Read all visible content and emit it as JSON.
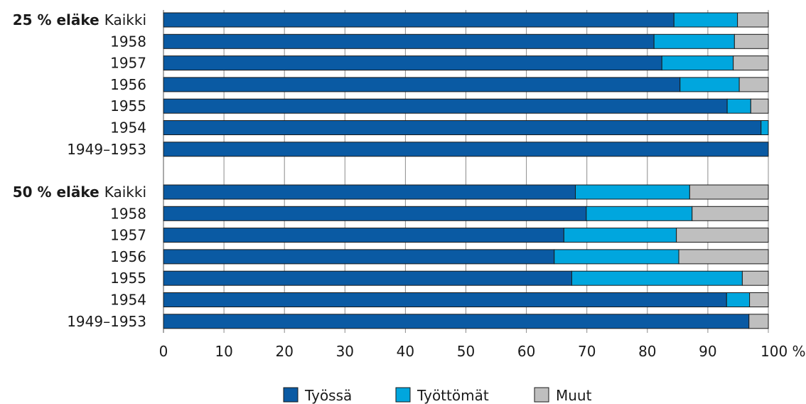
{
  "chart_data": {
    "type": "bar",
    "orientation": "horizontal",
    "stacked": true,
    "xlim": [
      0,
      100
    ],
    "x_ticks": [
      "0",
      "10",
      "20",
      "30",
      "40",
      "50",
      "60",
      "70",
      "80",
      "90",
      "100 %"
    ],
    "grid": "vertical",
    "legend_position": "bottom",
    "colors": {
      "Työssä": "#0a5aa3",
      "Työttömät": "#00a6de",
      "Muut": "#bfbfbf"
    },
    "series": [
      {
        "name": "Työssä"
      },
      {
        "name": "Työttömät"
      },
      {
        "name": "Muut"
      }
    ],
    "groups": [
      {
        "prefix": "25 % eläke",
        "rows": [
          {
            "label": "Kaikki",
            "values": [
              84.4,
              10.5,
              5.1
            ]
          },
          {
            "label": "1958",
            "values": [
              81.1,
              13.3,
              5.6
            ]
          },
          {
            "label": "1957",
            "values": [
              82.4,
              11.8,
              5.8
            ]
          },
          {
            "label": "1956",
            "values": [
              85.4,
              9.8,
              4.8
            ]
          },
          {
            "label": "1955",
            "values": [
              93.2,
              3.9,
              2.9
            ]
          },
          {
            "label": "1954",
            "values": [
              98.8,
              1.2,
              0
            ]
          },
          {
            "label": "1949–1953",
            "values": [
              100,
              0,
              0
            ]
          }
        ]
      },
      {
        "prefix": "50 % eläke",
        "rows": [
          {
            "label": "Kaikki",
            "values": [
              68.1,
              18.9,
              13.0
            ]
          },
          {
            "label": "1958",
            "values": [
              69.9,
              17.5,
              12.6
            ]
          },
          {
            "label": "1957",
            "values": [
              66.2,
              18.6,
              15.2
            ]
          },
          {
            "label": "1956",
            "values": [
              64.6,
              20.6,
              14.8
            ]
          },
          {
            "label": "1955",
            "values": [
              67.5,
              28.2,
              4.3
            ]
          },
          {
            "label": "1954",
            "values": [
              93.1,
              3.8,
              3.1
            ]
          },
          {
            "label": "1949–1953",
            "values": [
              96.8,
              0,
              3.2
            ]
          }
        ]
      }
    ]
  }
}
